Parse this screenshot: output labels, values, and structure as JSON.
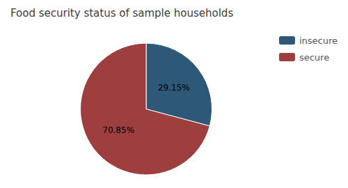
{
  "chart_data": {
    "type": "pie",
    "title": "Food security status of sample households",
    "categories": [
      "insecure",
      "secure"
    ],
    "values": [
      29.15,
      70.85
    ],
    "value_labels": [
      "29.15%",
      "70.85%"
    ],
    "colors": [
      "#2e5878",
      "#9e3e3e"
    ],
    "legend": "upper right",
    "data_labels": true
  }
}
